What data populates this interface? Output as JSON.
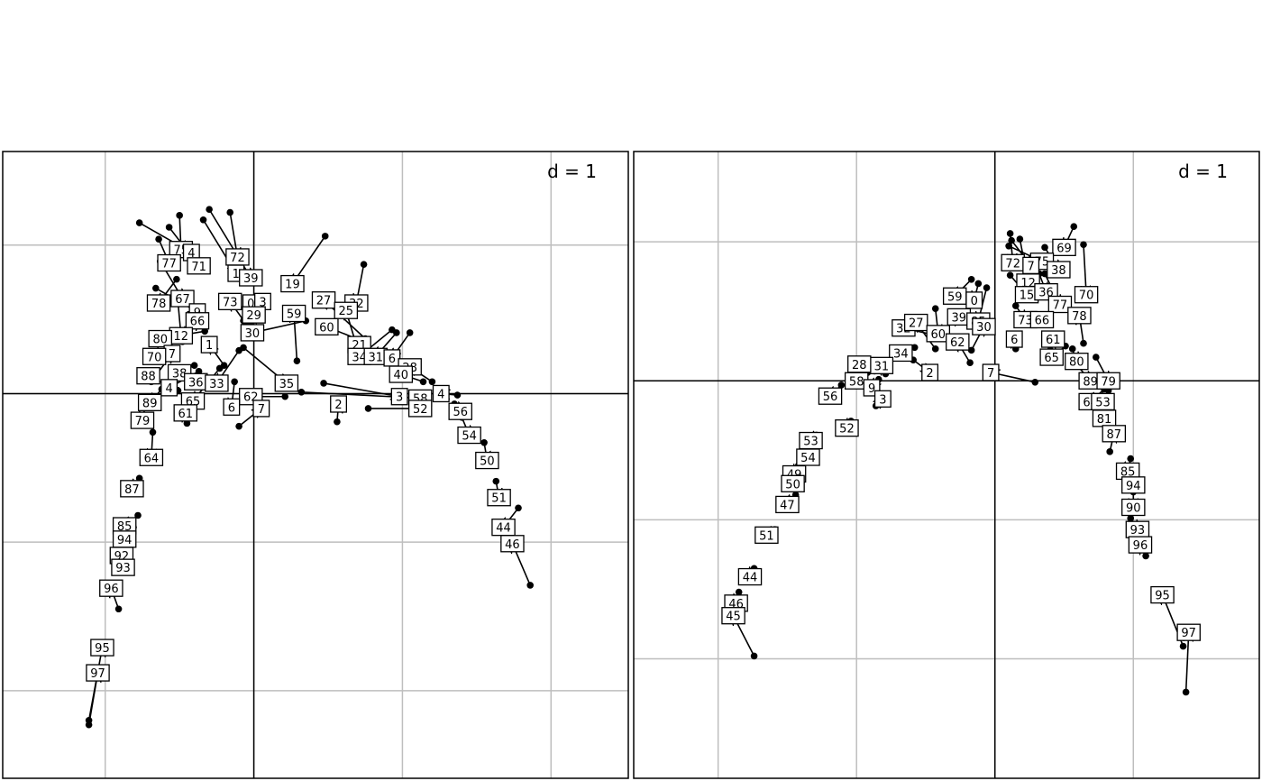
{
  "chart_data": [
    {
      "type": "scatter",
      "subtype": "procrustes-arrows",
      "scale_label": "d = 1",
      "grid": true,
      "xlim": [
        -1.69,
        2.52
      ],
      "ylim": [
        -2.59,
        1.63
      ],
      "gridlines_x": [
        -1,
        0,
        1,
        2
      ],
      "gridlines_y": [
        -2,
        -1,
        0,
        1
      ],
      "points": [
        {
          "label": "75",
          "x": -0.49,
          "y": 0.97,
          "dx": -0.01,
          "dy": 0.23
        },
        {
          "label": "4",
          "x": -0.42,
          "y": 0.95,
          "dx": -0.35,
          "dy": 0.2
        },
        {
          "label": "77",
          "x": -0.57,
          "y": 0.88,
          "dx": -0.07,
          "dy": 0.16
        },
        {
          "label": "71",
          "x": -0.37,
          "y": 0.86,
          "dx": -0.2,
          "dy": 0.26
        },
        {
          "label": "72",
          "x": -0.11,
          "y": 0.92,
          "dx": -0.05,
          "dy": 0.3
        },
        {
          "label": "1",
          "x": -0.12,
          "y": 0.81,
          "dx": -0.22,
          "dy": 0.36
        },
        {
          "label": "39",
          "x": -0.02,
          "y": 0.78,
          "dx": -0.28,
          "dy": 0.46
        },
        {
          "label": "19",
          "x": 0.26,
          "y": 0.74,
          "dx": 0.22,
          "dy": 0.32
        },
        {
          "label": "67",
          "x": -0.48,
          "y": 0.64,
          "dx": -0.15,
          "dy": 0.25
        },
        {
          "label": "78",
          "x": -0.64,
          "y": 0.61,
          "dx": 0.12,
          "dy": 0.16
        },
        {
          "label": "73",
          "x": -0.16,
          "y": 0.62,
          "dx": 0.1,
          "dy": -0.14
        },
        {
          "label": "0",
          "x": -0.02,
          "y": 0.61,
          "dx": -0.05,
          "dy": -0.12
        },
        {
          "label": "3",
          "x": 0.06,
          "y": 0.62,
          "dx": -0.08,
          "dy": -0.14
        },
        {
          "label": "27",
          "x": 0.47,
          "y": 0.63,
          "dx": 0.28,
          "dy": -0.26
        },
        {
          "label": "32",
          "x": 0.69,
          "y": 0.61,
          "dx": 0.05,
          "dy": 0.26
        },
        {
          "label": "9",
          "x": -0.38,
          "y": 0.55,
          "dx": -0.28,
          "dy": 0.16
        },
        {
          "label": "29",
          "x": 0.0,
          "y": 0.53,
          "dx": -0.02,
          "dy": -0.09
        },
        {
          "label": "59",
          "x": 0.27,
          "y": 0.54,
          "dx": 0.02,
          "dy": -0.32
        },
        {
          "label": "25",
          "x": 0.62,
          "y": 0.56,
          "dx": 0.06,
          "dy": -0.2
        },
        {
          "label": "66",
          "x": -0.38,
          "y": 0.49,
          "dx": -0.1,
          "dy": -0.14
        },
        {
          "label": "60",
          "x": 0.49,
          "y": 0.45,
          "dx": 0.25,
          "dy": -0.1
        },
        {
          "label": "12",
          "x": -0.49,
          "y": 0.39,
          "dx": -0.02,
          "dy": 0.22
        },
        {
          "label": "30",
          "x": -0.01,
          "y": 0.41,
          "dx": 0.36,
          "dy": 0.08
        },
        {
          "label": "1",
          "x": -0.3,
          "y": 0.33,
          "dx": 0.1,
          "dy": -0.14
        },
        {
          "label": "21",
          "x": 0.71,
          "y": 0.33,
          "dx": 0.18,
          "dy": -0.1
        },
        {
          "label": "80",
          "x": -0.63,
          "y": 0.37,
          "dx": 0.3,
          "dy": 0.05
        },
        {
          "label": "34",
          "x": 0.71,
          "y": 0.25,
          "dx": 0.22,
          "dy": 0.18
        },
        {
          "label": "31",
          "x": 0.82,
          "y": 0.25,
          "dx": 0.14,
          "dy": 0.16
        },
        {
          "label": "7",
          "x": -0.55,
          "y": 0.27,
          "dx": -0.14,
          "dy": -0.19
        },
        {
          "label": "6",
          "x": 0.93,
          "y": 0.24,
          "dx": 0.12,
          "dy": 0.17
        },
        {
          "label": "28",
          "x": 1.05,
          "y": 0.18,
          "dx": 0.15,
          "dy": -0.1
        },
        {
          "label": "70",
          "x": -0.67,
          "y": 0.25,
          "dx": 0.1,
          "dy": 0.08
        },
        {
          "label": "40",
          "x": 0.99,
          "y": 0.13,
          "dx": 0.15,
          "dy": -0.05
        },
        {
          "label": "38",
          "x": -0.5,
          "y": 0.14,
          "dx": 0.1,
          "dy": 0.05
        },
        {
          "label": "88",
          "x": -0.71,
          "y": 0.12,
          "dx": 0.2,
          "dy": -0.1
        },
        {
          "label": "36",
          "x": -0.39,
          "y": 0.08,
          "dx": -0.1,
          "dy": 0.05
        },
        {
          "label": "33",
          "x": -0.25,
          "y": 0.07,
          "dx": 0.15,
          "dy": 0.22
        },
        {
          "label": "35",
          "x": 0.22,
          "y": 0.07,
          "dx": -0.29,
          "dy": 0.24
        },
        {
          "label": "4",
          "x": -0.57,
          "y": 0.04,
          "dx": 0.2,
          "dy": 0.11
        },
        {
          "label": "3",
          "x": 0.98,
          "y": -0.02,
          "dx": -0.51,
          "dy": 0.09
        },
        {
          "label": "58",
          "x": 1.12,
          "y": -0.03,
          "dx": -0.8,
          "dy": 0.04
        },
        {
          "label": "62",
          "x": -0.02,
          "y": -0.02,
          "dx": 0.23,
          "dy": 0.0
        },
        {
          "label": "4",
          "x": 1.26,
          "y": 0.0,
          "dx": 0.11,
          "dy": -0.01
        },
        {
          "label": "65",
          "x": -0.41,
          "y": -0.05,
          "dx": 0.18,
          "dy": 0.22
        },
        {
          "label": "89",
          "x": -0.7,
          "y": -0.06,
          "dx": 0.08,
          "dy": 0.09
        },
        {
          "label": "6",
          "x": -0.15,
          "y": -0.09,
          "dx": 0.02,
          "dy": 0.17
        },
        {
          "label": "7",
          "x": 0.05,
          "y": -0.1,
          "dx": -0.15,
          "dy": -0.12
        },
        {
          "label": "2",
          "x": 0.57,
          "y": -0.07,
          "dx": -0.01,
          "dy": -0.12
        },
        {
          "label": "52",
          "x": 1.12,
          "y": -0.1,
          "dx": -0.35,
          "dy": 0.0
        },
        {
          "label": "56",
          "x": 1.39,
          "y": -0.12,
          "dx": -0.04,
          "dy": 0.05
        },
        {
          "label": "61",
          "x": -0.46,
          "y": -0.13,
          "dx": 0.01,
          "dy": -0.07
        },
        {
          "label": "79",
          "x": -0.75,
          "y": -0.18,
          "dx": 0.02,
          "dy": 0.1
        },
        {
          "label": "54",
          "x": 1.45,
          "y": -0.28,
          "dx": -0.05,
          "dy": 0.12
        },
        {
          "label": "64",
          "x": -0.69,
          "y": -0.43,
          "dx": 0.01,
          "dy": 0.17
        },
        {
          "label": "50",
          "x": 1.57,
          "y": -0.45,
          "dx": -0.02,
          "dy": 0.12
        },
        {
          "label": "87",
          "x": -0.82,
          "y": -0.64,
          "dx": 0.05,
          "dy": 0.07
        },
        {
          "label": "51",
          "x": 1.65,
          "y": -0.7,
          "dx": -0.02,
          "dy": 0.11
        },
        {
          "label": "85",
          "x": -0.87,
          "y": -0.89,
          "dx": 0.09,
          "dy": 0.07
        },
        {
          "label": "94",
          "x": -0.87,
          "y": -0.98,
          "dx": 0.06,
          "dy": 0.08
        },
        {
          "label": "44",
          "x": 1.68,
          "y": -0.9,
          "dx": 0.1,
          "dy": 0.13
        },
        {
          "label": "46",
          "x": 1.74,
          "y": -1.01,
          "dx": 0.12,
          "dy": -0.28
        },
        {
          "label": "92",
          "x": -0.89,
          "y": -1.09,
          "dx": 0.06,
          "dy": 0.12
        },
        {
          "label": "93",
          "x": -0.88,
          "y": -1.17,
          "dx": 0.04,
          "dy": 0.12
        },
        {
          "label": "96",
          "x": -0.96,
          "y": -1.31,
          "dx": 0.05,
          "dy": -0.14
        },
        {
          "label": "95",
          "x": -1.02,
          "y": -1.71,
          "dx": -0.09,
          "dy": -0.49
        },
        {
          "label": "97",
          "x": -1.05,
          "y": -1.88,
          "dx": -0.06,
          "dy": -0.35
        }
      ]
    },
    {
      "type": "scatter",
      "subtype": "procrustes-arrows",
      "scale_label": "d = 1",
      "grid": true,
      "xlim": [
        -2.61,
        1.91
      ],
      "ylim": [
        -2.86,
        1.65
      ],
      "gridlines_x": [
        -2,
        -1,
        0,
        1
      ],
      "gridlines_y": [
        -2,
        -1,
        0,
        1
      ],
      "points": [
        {
          "label": "69",
          "x": 0.5,
          "y": 0.96,
          "dx": 0.07,
          "dy": 0.15
        },
        {
          "label": "72",
          "x": 0.13,
          "y": 0.85,
          "dx": -0.02,
          "dy": 0.21
        },
        {
          "label": "75",
          "x": 0.34,
          "y": 0.86,
          "dx": -0.24,
          "dy": 0.11
        },
        {
          "label": "38",
          "x": 0.46,
          "y": 0.8,
          "dx": -0.1,
          "dy": 0.16
        },
        {
          "label": "7",
          "x": 0.26,
          "y": 0.83,
          "dx": -0.14,
          "dy": 0.18
        },
        {
          "label": "12",
          "x": 0.24,
          "y": 0.71,
          "dx": -0.06,
          "dy": 0.31
        },
        {
          "label": "15",
          "x": 0.23,
          "y": 0.62,
          "dx": -0.12,
          "dy": 0.14
        },
        {
          "label": "36",
          "x": 0.37,
          "y": 0.64,
          "dx": -0.05,
          "dy": 0.13
        },
        {
          "label": "70",
          "x": 0.66,
          "y": 0.62,
          "dx": -0.02,
          "dy": 0.36
        },
        {
          "label": "77",
          "x": 0.47,
          "y": 0.55,
          "dx": -0.11,
          "dy": 0.22
        },
        {
          "label": "59",
          "x": -0.29,
          "y": 0.61,
          "dx": 0.12,
          "dy": 0.12
        },
        {
          "label": "0",
          "x": -0.15,
          "y": 0.58,
          "dx": 0.03,
          "dy": 0.12
        },
        {
          "label": "78",
          "x": 0.61,
          "y": 0.47,
          "dx": 0.03,
          "dy": -0.2
        },
        {
          "label": "39",
          "x": -0.26,
          "y": 0.46,
          "dx": -0.15,
          "dy": -0.12
        },
        {
          "label": "85",
          "x": -0.12,
          "y": 0.43,
          "dx": 0.06,
          "dy": 0.24
        },
        {
          "label": "73",
          "x": 0.22,
          "y": 0.44,
          "dx": -0.07,
          "dy": 0.1
        },
        {
          "label": "66",
          "x": 0.34,
          "y": 0.44,
          "dx": 0.06,
          "dy": 0.02
        },
        {
          "label": "32",
          "x": -0.66,
          "y": 0.38,
          "dx": 0.35,
          "dy": -0.08
        },
        {
          "label": "27",
          "x": -0.57,
          "y": 0.42,
          "dx": 0.14,
          "dy": -0.19
        },
        {
          "label": "60",
          "x": -0.41,
          "y": 0.34,
          "dx": -0.02,
          "dy": 0.18
        },
        {
          "label": "30",
          "x": -0.08,
          "y": 0.39,
          "dx": -0.09,
          "dy": -0.17
        },
        {
          "label": "62",
          "x": -0.27,
          "y": 0.28,
          "dx": 0.09,
          "dy": -0.15
        },
        {
          "label": "6",
          "x": 0.14,
          "y": 0.3,
          "dx": 0.01,
          "dy": -0.07
        },
        {
          "label": "61",
          "x": 0.42,
          "y": 0.3,
          "dx": -0.02,
          "dy": -0.08
        },
        {
          "label": "34",
          "x": -0.68,
          "y": 0.2,
          "dx": 0.1,
          "dy": 0.04
        },
        {
          "label": "65",
          "x": 0.41,
          "y": 0.17,
          "dx": 0.1,
          "dy": 0.08
        },
        {
          "label": "31",
          "x": -0.82,
          "y": 0.11,
          "dx": 0.03,
          "dy": -0.06
        },
        {
          "label": "28",
          "x": -0.98,
          "y": 0.12,
          "dx": 0.06,
          "dy": -0.06
        },
        {
          "label": "80",
          "x": 0.59,
          "y": 0.14,
          "dx": -0.03,
          "dy": 0.09
        },
        {
          "label": "2",
          "x": -0.47,
          "y": 0.06,
          "dx": -0.12,
          "dy": 0.09
        },
        {
          "label": "7",
          "x": -0.03,
          "y": 0.06,
          "dx": 0.32,
          "dy": -0.07
        },
        {
          "label": "89",
          "x": 0.69,
          "y": 0.0,
          "dx": -0.13,
          "dy": 0.15
        },
        {
          "label": "79",
          "x": 0.82,
          "y": 0.0,
          "dx": -0.09,
          "dy": 0.17
        },
        {
          "label": "58",
          "x": -1.0,
          "y": 0.0,
          "dx": 0.13,
          "dy": 0.07
        },
        {
          "label": "9",
          "x": -0.89,
          "y": -0.05,
          "dx": 0.05,
          "dy": 0.06
        },
        {
          "label": "3",
          "x": -0.81,
          "y": -0.13,
          "dx": -0.05,
          "dy": -0.05
        },
        {
          "label": "56",
          "x": -1.19,
          "y": -0.11,
          "dx": 0.08,
          "dy": 0.08
        },
        {
          "label": "64",
          "x": 0.69,
          "y": -0.15,
          "dx": 0.1,
          "dy": 0.09
        },
        {
          "label": "53",
          "x": 0.78,
          "y": -0.15,
          "dx": 0.04,
          "dy": 0.08
        },
        {
          "label": "81",
          "x": 0.79,
          "y": -0.27,
          "dx": -0.03,
          "dy": 0.1
        },
        {
          "label": "52",
          "x": -1.07,
          "y": -0.34,
          "dx": 0.03,
          "dy": 0.05
        },
        {
          "label": "53",
          "x": -1.33,
          "y": -0.43,
          "dx": 0.04,
          "dy": 0.04
        },
        {
          "label": "87",
          "x": 0.86,
          "y": -0.38,
          "dx": -0.03,
          "dy": -0.13
        },
        {
          "label": "54",
          "x": -1.35,
          "y": -0.55,
          "dx": 0.04,
          "dy": 0.07
        },
        {
          "label": "49",
          "x": -1.45,
          "y": -0.67,
          "dx": 0.03,
          "dy": 0.06
        },
        {
          "label": "50",
          "x": -1.46,
          "y": -0.74,
          "dx": 0.06,
          "dy": 0.07
        },
        {
          "label": "85",
          "x": 0.96,
          "y": -0.65,
          "dx": 0.02,
          "dy": 0.09
        },
        {
          "label": "94",
          "x": 1.0,
          "y": -0.75,
          "dx": 0.01,
          "dy": 0.11
        },
        {
          "label": "47",
          "x": -1.5,
          "y": -0.89,
          "dx": 0.06,
          "dy": 0.07
        },
        {
          "label": "90",
          "x": 1.0,
          "y": -0.91,
          "dx": 0.0,
          "dy": 0.11
        },
        {
          "label": "93",
          "x": 1.03,
          "y": -1.07,
          "dx": -0.05,
          "dy": 0.08
        },
        {
          "label": "96",
          "x": 1.05,
          "y": -1.18,
          "dx": 0.04,
          "dy": -0.08
        },
        {
          "label": "51",
          "x": -1.65,
          "y": -1.11,
          "dx": 0.06,
          "dy": 0.04
        },
        {
          "label": "44",
          "x": -1.77,
          "y": -1.41,
          "dx": 0.03,
          "dy": 0.06
        },
        {
          "label": "46",
          "x": -1.87,
          "y": -1.6,
          "dx": 0.02,
          "dy": 0.08
        },
        {
          "label": "45",
          "x": -1.89,
          "y": -1.69,
          "dx": 0.15,
          "dy": -0.29
        },
        {
          "label": "95",
          "x": 1.21,
          "y": -1.54,
          "dx": 0.15,
          "dy": -0.37
        },
        {
          "label": "97",
          "x": 1.4,
          "y": -1.81,
          "dx": -0.02,
          "dy": -0.43
        }
      ]
    }
  ]
}
